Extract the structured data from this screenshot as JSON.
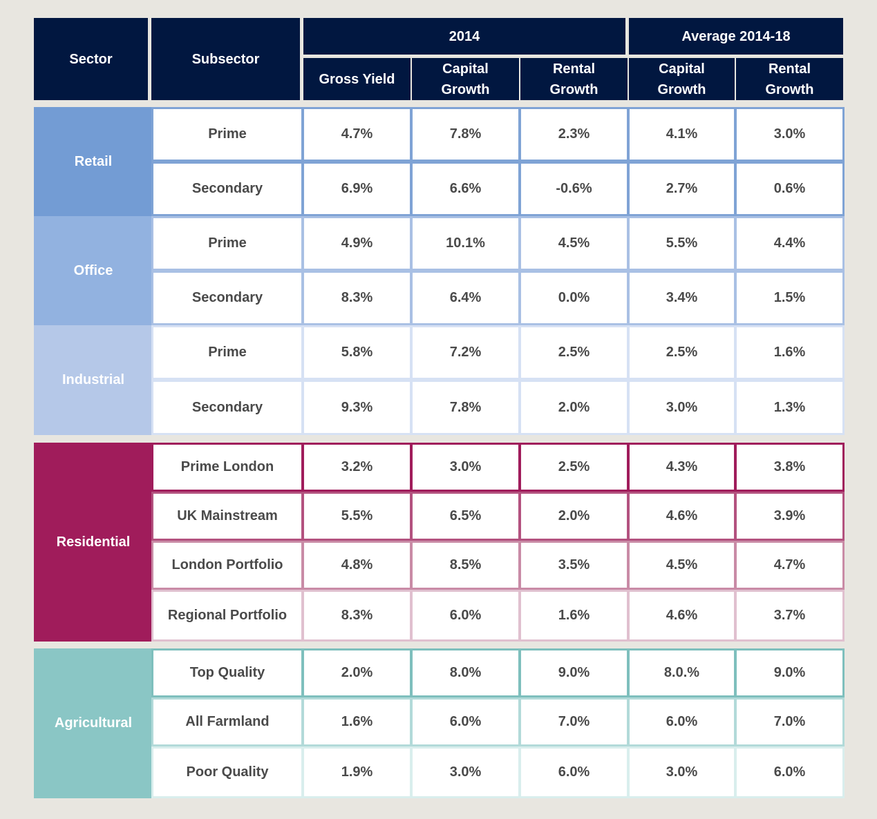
{
  "header": {
    "sector_label": "Sector",
    "subsector_label": "Subsector",
    "group_2014": "2014",
    "group_avg": "Average 2014-18",
    "columns": [
      "Gross Yield",
      "Capital\nGrowth",
      "Rental\nGrowth",
      "Capital\nGrowth",
      "Rental\nGrowth"
    ]
  },
  "chart_data": {
    "type": "table",
    "columns": [
      "Sector",
      "Subsector",
      "2014 Gross Yield",
      "2014 Capital Growth",
      "2014 Rental Growth",
      "Average 2014-18 Capital Growth",
      "Average 2014-18 Rental Growth"
    ],
    "sectors": [
      {
        "name": "Retail",
        "color": "#739cd4",
        "border_colors": [
          "#7fa3d5",
          "#7fa3d5"
        ],
        "rows": [
          {
            "subsector": "Prime",
            "values": [
              "4.7%",
              "7.8%",
              "2.3%",
              "4.1%",
              "3.0%"
            ]
          },
          {
            "subsector": "Secondary",
            "values": [
              "6.9%",
              "6.6%",
              "-0.6%",
              "2.7%",
              "0.6%"
            ]
          }
        ]
      },
      {
        "name": "Office",
        "color": "#92b2e0",
        "border_colors": [
          "#a9c0e4",
          "#a9c0e4"
        ],
        "rows": [
          {
            "subsector": "Prime",
            "values": [
              "4.9%",
              "10.1%",
              "4.5%",
              "5.5%",
              "4.4%"
            ]
          },
          {
            "subsector": "Secondary",
            "values": [
              "8.3%",
              "6.4%",
              "0.0%",
              "3.4%",
              "1.5%"
            ]
          }
        ]
      },
      {
        "name": "Industrial",
        "color": "#b5c8e8",
        "border_colors": [
          "#d6e1f4",
          "#d6e1f4"
        ],
        "rows": [
          {
            "subsector": "Prime",
            "values": [
              "5.8%",
              "7.2%",
              "2.5%",
              "2.5%",
              "1.6%"
            ]
          },
          {
            "subsector": "Secondary",
            "values": [
              "9.3%",
              "7.8%",
              "2.0%",
              "3.0%",
              "1.3%"
            ]
          }
        ]
      },
      {
        "name": "Residential",
        "color": "#a01c5b",
        "border_colors": [
          "#a01c5b",
          "#b3527f",
          "#c98ba6",
          "#e0c0cf"
        ],
        "rows": [
          {
            "subsector": "Prime London",
            "values": [
              "3.2%",
              "3.0%",
              "2.5%",
              "4.3%",
              "3.8%"
            ]
          },
          {
            "subsector": "UK Mainstream",
            "values": [
              "5.5%",
              "6.5%",
              "2.0%",
              "4.6%",
              "3.9%"
            ]
          },
          {
            "subsector": "London Portfolio",
            "values": [
              "4.8%",
              "8.5%",
              "3.5%",
              "4.5%",
              "4.7%"
            ]
          },
          {
            "subsector": "Regional Portfolio",
            "values": [
              "8.3%",
              "6.0%",
              "1.6%",
              "4.6%",
              "3.7%"
            ]
          }
        ]
      },
      {
        "name": "Agricultural",
        "color": "#8ac6c5",
        "border_colors": [
          "#7ebfbd",
          "#b2dad9",
          "#d9eeed"
        ],
        "rows": [
          {
            "subsector": "Top Quality",
            "values": [
              "2.0%",
              "8.0%",
              "9.0%",
              "8.0.%",
              "9.0%"
            ]
          },
          {
            "subsector": "All Farmland",
            "values": [
              "1.6%",
              "6.0%",
              "7.0%",
              "6.0%",
              "7.0%"
            ]
          },
          {
            "subsector": "Poor Quality",
            "values": [
              "1.9%",
              "3.0%",
              "6.0%",
              "3.0%",
              "6.0%"
            ]
          }
        ]
      }
    ]
  }
}
